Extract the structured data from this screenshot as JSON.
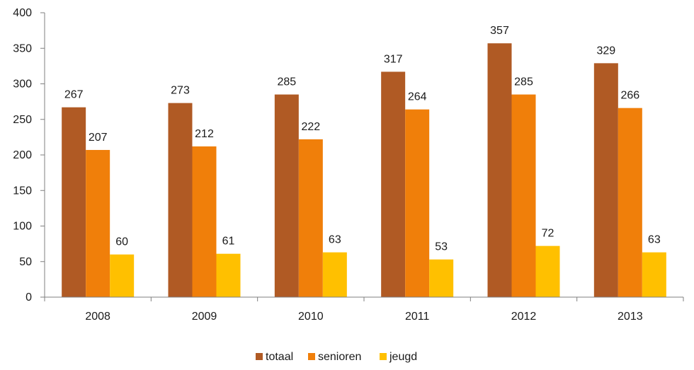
{
  "chart_data": {
    "type": "bar",
    "categories": [
      "2008",
      "2009",
      "2010",
      "2011",
      "2012",
      "2013"
    ],
    "series": [
      {
        "name": "totaal",
        "values": [
          267,
          273,
          285,
          317,
          357,
          329
        ],
        "color": "#B05A24"
      },
      {
        "name": "senioren",
        "values": [
          207,
          212,
          222,
          264,
          285,
          266
        ],
        "color": "#F07F0A"
      },
      {
        "name": "jeugd",
        "values": [
          60,
          61,
          63,
          53,
          72,
          63
        ],
        "color": "#FFC000"
      }
    ],
    "title": "",
    "xlabel": "",
    "ylabel": "",
    "ylim": [
      0,
      400
    ],
    "yticks": [
      0,
      50,
      100,
      150,
      200,
      250,
      300,
      350,
      400
    ],
    "grid": false,
    "legend_position": "bottom",
    "data_labels": true
  }
}
